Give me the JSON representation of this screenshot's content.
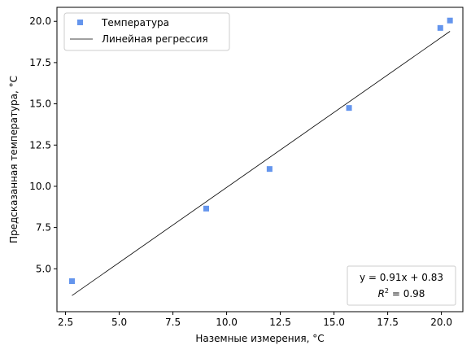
{
  "chart_data": {
    "type": "scatter",
    "xlabel": "Наземные измерения, °C",
    "ylabel": "Предсказанная температура, °C",
    "xlim": [
      2.1,
      21.0
    ],
    "ylim": [
      2.4,
      20.85
    ],
    "xticks": [
      2.5,
      5.0,
      7.5,
      10.0,
      12.5,
      15.0,
      17.5,
      20.0
    ],
    "xtick_labels": [
      "2.5",
      "5.0",
      "7.5",
      "10.0",
      "12.5",
      "15.0",
      "17.5",
      "20.0"
    ],
    "yticks": [
      5.0,
      7.5,
      10.0,
      12.5,
      15.0,
      17.5,
      20.0
    ],
    "ytick_labels": [
      "5.0",
      "7.5",
      "10.0",
      "12.5",
      "15.0",
      "17.5",
      "20.0"
    ],
    "grid": false,
    "legend_position": "upper-left",
    "series": [
      {
        "name": "Температура",
        "kind": "scatter",
        "marker": "square",
        "color": "#6495ed",
        "points": [
          {
            "x": 2.8,
            "y": 4.25
          },
          {
            "x": 9.05,
            "y": 8.65
          },
          {
            "x": 12.0,
            "y": 11.05
          },
          {
            "x": 15.7,
            "y": 14.75
          },
          {
            "x": 19.95,
            "y": 19.6
          },
          {
            "x": 20.4,
            "y": 20.05
          }
        ]
      },
      {
        "name": "Линейная регрессия",
        "kind": "line",
        "color": "#000000",
        "slope": 0.91,
        "intercept": 0.83,
        "x_range": [
          2.8,
          20.4
        ]
      }
    ],
    "annotation": {
      "equation": "y = 0.91x + 0.83",
      "r2_label": "R",
      "r2_exp": "2",
      "r2_value": " = 0.98",
      "position": "lower-right"
    }
  }
}
